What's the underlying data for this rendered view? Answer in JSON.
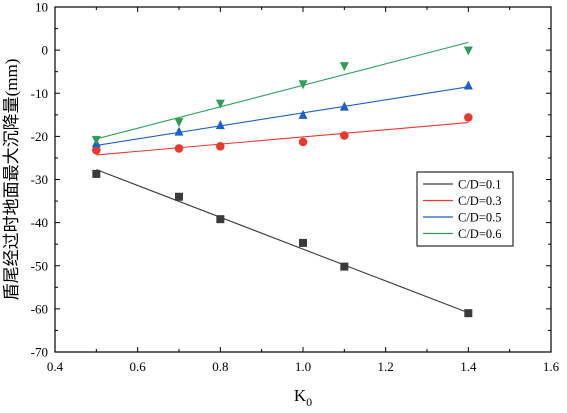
{
  "chart_data": {
    "type": "scatter",
    "xlabel": "K",
    "xlabel_subscript": "0",
    "ylabel": "盾尾经过时地面最大沉降量(mm)",
    "xlim": [
      0.4,
      1.6
    ],
    "ylim": [
      -70,
      10
    ],
    "x_ticks": [
      0.4,
      0.6,
      0.8,
      1.0,
      1.2,
      1.4,
      1.6
    ],
    "x_tick_labels": [
      "0.4",
      "0.6",
      "0.8",
      "1.0",
      "1.2",
      "1.4",
      "1.6"
    ],
    "y_ticks": [
      10,
      0,
      -10,
      -20,
      -30,
      -40,
      -50,
      -60,
      -70
    ],
    "y_tick_labels": [
      "10",
      "0",
      "-10",
      "-20",
      "-30",
      "-40",
      "-50",
      "-60",
      "-70"
    ],
    "grid": false,
    "legend_position": "right-middle",
    "series": [
      {
        "name": "C/D=0.1",
        "color": "#3a3a3a",
        "marker": "square",
        "x": [
          0.5,
          0.7,
          0.8,
          1.0,
          1.1,
          1.4
        ],
        "y": [
          -28.7,
          -34.0,
          -39.2,
          -44.7,
          -50.2,
          -61.0
        ],
        "fit": [
          [
            0.5,
            -27.7
          ],
          [
            1.4,
            -60.9
          ]
        ]
      },
      {
        "name": "C/D=0.3",
        "color": "#e8382f",
        "marker": "circle",
        "x": [
          0.5,
          0.7,
          0.8,
          1.0,
          1.1,
          1.4
        ],
        "y": [
          -23.2,
          -22.8,
          -22.3,
          -21.3,
          -19.8,
          -15.6
        ],
        "fit": [
          [
            0.5,
            -24.3
          ],
          [
            1.4,
            -16.8
          ]
        ]
      },
      {
        "name": "C/D=0.5",
        "color": "#1f5fc8",
        "marker": "triangle",
        "x": [
          0.5,
          0.7,
          0.8,
          1.0,
          1.1,
          1.4
        ],
        "y": [
          -21.6,
          -18.9,
          -17.4,
          -15.0,
          -13.1,
          -8.2
        ],
        "fit": [
          [
            0.5,
            -22.1
          ],
          [
            1.4,
            -8.5
          ]
        ]
      },
      {
        "name": "C/D=0.6",
        "color": "#2ca05a",
        "marker": "triangle-down",
        "x": [
          0.5,
          0.7,
          0.8,
          1.0,
          1.1,
          1.4
        ],
        "y": [
          -20.8,
          -16.7,
          -12.4,
          -7.9,
          -3.7,
          -0.1
        ],
        "fit": [
          [
            0.5,
            -20.6
          ],
          [
            1.4,
            1.8
          ]
        ]
      }
    ]
  }
}
